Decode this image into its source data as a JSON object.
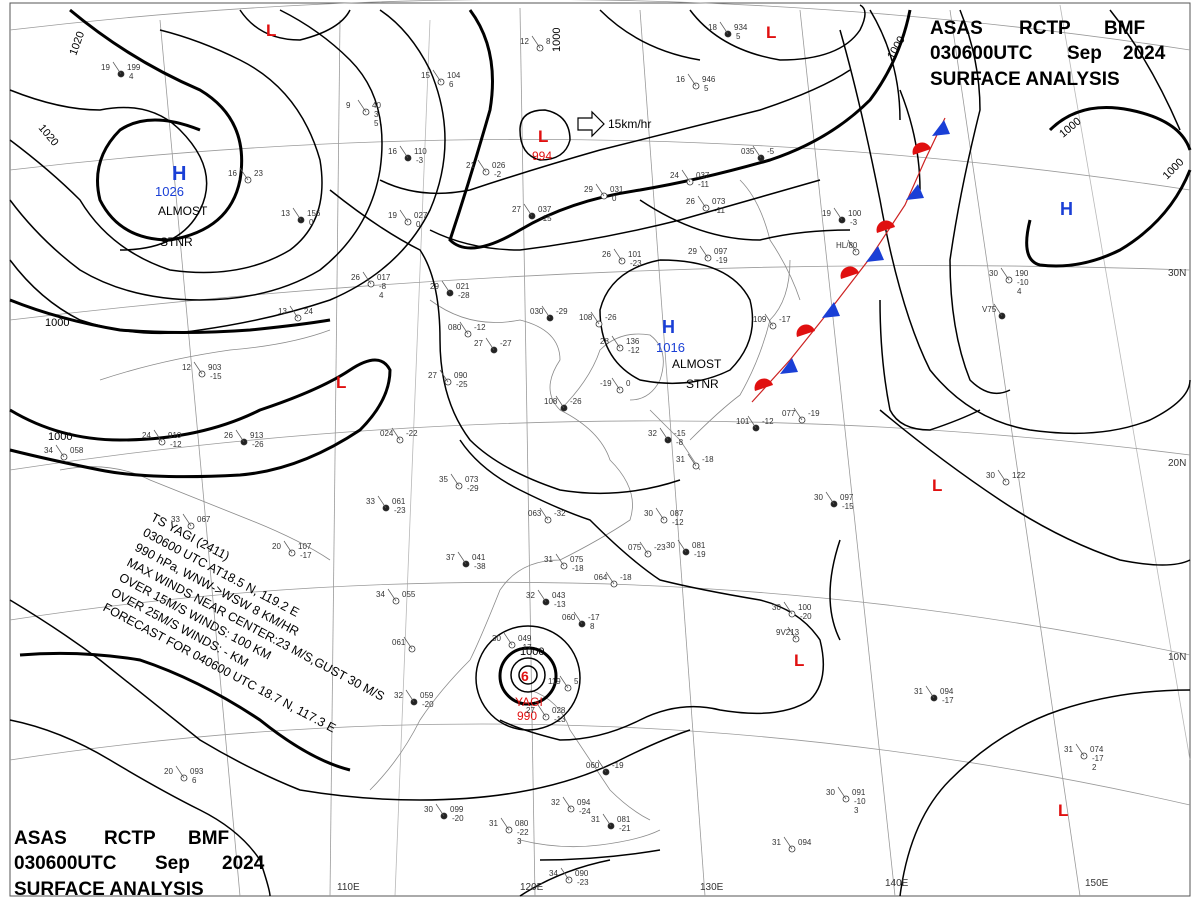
{
  "header_top": {
    "line1": [
      "ASAS",
      "RCTP",
      "BMF"
    ],
    "line2": [
      "030600UTC",
      "Sep",
      "2024"
    ],
    "line3": "SURFACE  ANALYSIS"
  },
  "header_bottom": {
    "line1": [
      "ASAS",
      "RCTP",
      "BMF"
    ],
    "line2": [
      "030600UTC",
      "Sep",
      "2024"
    ],
    "line3": "SURFACE  ANALYSIS"
  },
  "longitude_labels": [
    "110E",
    "120E",
    "130E",
    "140E",
    "150E"
  ],
  "latitude_labels": [
    "30N",
    "20N",
    "10N"
  ],
  "isobar_labels": [
    "1020",
    "1020",
    "1000",
    "1000",
    "1000",
    "1000",
    "1000",
    "1000",
    "1000"
  ],
  "pressure_systems": [
    {
      "type": "H",
      "value": "1026",
      "note": [
        "ALMOST",
        "STNR"
      ],
      "color": "#1a3fd6"
    },
    {
      "type": "L",
      "value": "994",
      "movement": "15km/hr",
      "color": "#e01010"
    },
    {
      "type": "H",
      "value": "1016",
      "note": [
        "ALMOST",
        "STNR"
      ],
      "color": "#1a3fd6"
    },
    {
      "type": "H",
      "value": "",
      "color": "#1a3fd6"
    },
    {
      "type": "L",
      "value": "",
      "color": "#e01010"
    },
    {
      "type": "L",
      "value": "",
      "color": "#e01010"
    },
    {
      "type": "L",
      "value": "",
      "color": "#e01010"
    },
    {
      "type": "L",
      "value": "",
      "color": "#e01010"
    },
    {
      "type": "L",
      "value": "",
      "color": "#e01010"
    },
    {
      "type": "L",
      "value": "",
      "color": "#e01010"
    }
  ],
  "typhoon": {
    "name": "YAGI",
    "pressure": "990",
    "bulletin": [
      "TS  YAGI  (2411)",
      "030600 UTC  AT18.5 N, 119.2 E",
      "990 hPa, WNW->WSW  8 KM/HR",
      "MAX WINDS NEAR CENTER:23 M/S,GUST 30 M/S",
      "OVER 15M/S WINDS: 100 KM",
      "OVER 25M/S WINDS: - KM",
      "FORECAST FOR 040600 UTC 18.7 N, 117.3 E"
    ]
  },
  "stations": [
    {
      "lines": [
        "19",
        "199",
        "4"
      ]
    },
    {
      "lines": [
        "15",
        "104",
        "6"
      ]
    },
    {
      "lines": [
        "12",
        "8"
      ]
    },
    {
      "lines": [
        "18",
        "934",
        "5"
      ]
    },
    {
      "lines": [
        "16",
        "946",
        "5"
      ]
    },
    {
      "lines": [
        "9",
        "40",
        "3",
        "5"
      ]
    },
    {
      "lines": [
        "16",
        "110",
        "-3"
      ]
    },
    {
      "lines": [
        "21",
        "026",
        "-2"
      ]
    },
    {
      "lines": [
        "16",
        "23"
      ]
    },
    {
      "lines": [
        "13",
        "156",
        "0"
      ]
    },
    {
      "lines": [
        "19",
        "027",
        "0"
      ]
    },
    {
      "lines": [
        "29",
        "031",
        "0"
      ]
    },
    {
      "lines": [
        "27",
        "037",
        "-15"
      ]
    },
    {
      "lines": [
        "24",
        "037",
        "-11"
      ]
    },
    {
      "lines": [
        "26",
        "073",
        "-11"
      ]
    },
    {
      "lines": [
        "035",
        "-5"
      ]
    },
    {
      "lines": [
        "29",
        "097",
        "-19"
      ]
    },
    {
      "lines": [
        "26",
        "101",
        "-23"
      ]
    },
    {
      "lines": [
        "19",
        "100",
        "-3"
      ]
    },
    {
      "lines": [
        "HL/80"
      ]
    },
    {
      "lines": [
        "26",
        "017",
        "-8",
        "4"
      ]
    },
    {
      "lines": [
        "29",
        "021",
        "-28"
      ]
    },
    {
      "lines": [
        "13",
        "24"
      ]
    },
    {
      "lines": [
        "080",
        "-12"
      ]
    },
    {
      "lines": [
        "030",
        "-29"
      ]
    },
    {
      "lines": [
        "108",
        "-26"
      ]
    },
    {
      "lines": [
        "28",
        "136",
        "-12"
      ]
    },
    {
      "lines": [
        "27",
        "-27"
      ]
    },
    {
      "lines": [
        "12",
        "903",
        "-15"
      ]
    },
    {
      "lines": [
        "27",
        "090",
        "-25"
      ]
    },
    {
      "lines": [
        "108",
        "-26"
      ]
    },
    {
      "lines": [
        "-19",
        "0"
      ]
    },
    {
      "lines": [
        "24",
        "910",
        "-12"
      ]
    },
    {
      "lines": [
        "26",
        "913",
        "-26"
      ]
    },
    {
      "lines": [
        "34",
        "058"
      ]
    },
    {
      "lines": [
        "024",
        "-22"
      ]
    },
    {
      "lines": [
        "32",
        "-15",
        "-8"
      ]
    },
    {
      "lines": [
        "31",
        "-18"
      ]
    },
    {
      "lines": [
        "109",
        "-17"
      ]
    },
    {
      "lines": [
        "101",
        "-12"
      ]
    },
    {
      "lines": [
        "077",
        "-19"
      ]
    },
    {
      "lines": [
        "30",
        "190",
        "-10",
        "4"
      ]
    },
    {
      "lines": [
        "V75"
      ]
    },
    {
      "lines": [
        "35",
        "073",
        "-29"
      ]
    },
    {
      "lines": [
        "33",
        "067"
      ]
    },
    {
      "lines": [
        "33",
        "061",
        "-23"
      ]
    },
    {
      "lines": [
        "063",
        "-32"
      ]
    },
    {
      "lines": [
        "30",
        "087",
        "-12"
      ]
    },
    {
      "lines": [
        "30",
        "097",
        "-15"
      ]
    },
    {
      "lines": [
        "30",
        "122"
      ]
    },
    {
      "lines": [
        "20",
        "107",
        "-17"
      ]
    },
    {
      "lines": [
        "37",
        "041",
        "-38"
      ]
    },
    {
      "lines": [
        "31",
        "075",
        "-18"
      ]
    },
    {
      "lines": [
        "075",
        "-23"
      ]
    },
    {
      "lines": [
        "30",
        "081",
        "-19"
      ]
    },
    {
      "lines": [
        "064",
        "-18"
      ]
    },
    {
      "lines": [
        "34",
        "055"
      ]
    },
    {
      "lines": [
        "32",
        "043",
        "-13"
      ]
    },
    {
      "lines": [
        "30",
        "100",
        "-20"
      ]
    },
    {
      "lines": [
        "9V213"
      ]
    },
    {
      "lines": [
        "060",
        "-17",
        "8"
      ]
    },
    {
      "lines": [
        "30",
        "049",
        "-17"
      ]
    },
    {
      "lines": [
        "061"
      ]
    },
    {
      "lines": [
        "32",
        "059",
        "-20"
      ]
    },
    {
      "lines": [
        "27",
        "028",
        "-13"
      ]
    },
    {
      "lines": [
        "119",
        "5"
      ]
    },
    {
      "lines": [
        "31",
        "094",
        "-17"
      ]
    },
    {
      "lines": [
        "31",
        "074",
        "-17",
        "2"
      ]
    },
    {
      "lines": [
        "20",
        "093",
        "6"
      ]
    },
    {
      "lines": [
        "30",
        "099",
        "-20"
      ]
    },
    {
      "lines": [
        "31",
        "080",
        "-22",
        "3"
      ]
    },
    {
      "lines": [
        "32",
        "094",
        "-24"
      ]
    },
    {
      "lines": [
        "31",
        "081",
        "-21"
      ]
    },
    {
      "lines": [
        "30",
        "091",
        "-10",
        "3"
      ]
    },
    {
      "lines": [
        "31",
        "094"
      ]
    },
    {
      "lines": [
        "060",
        "-19"
      ]
    },
    {
      "lines": [
        "34",
        "090",
        "-23"
      ]
    }
  ],
  "colors": {
    "high": "#1a3fd6",
    "low": "#e01010",
    "front_warm": "#e01010",
    "front_cold": "#1a3fd6"
  }
}
